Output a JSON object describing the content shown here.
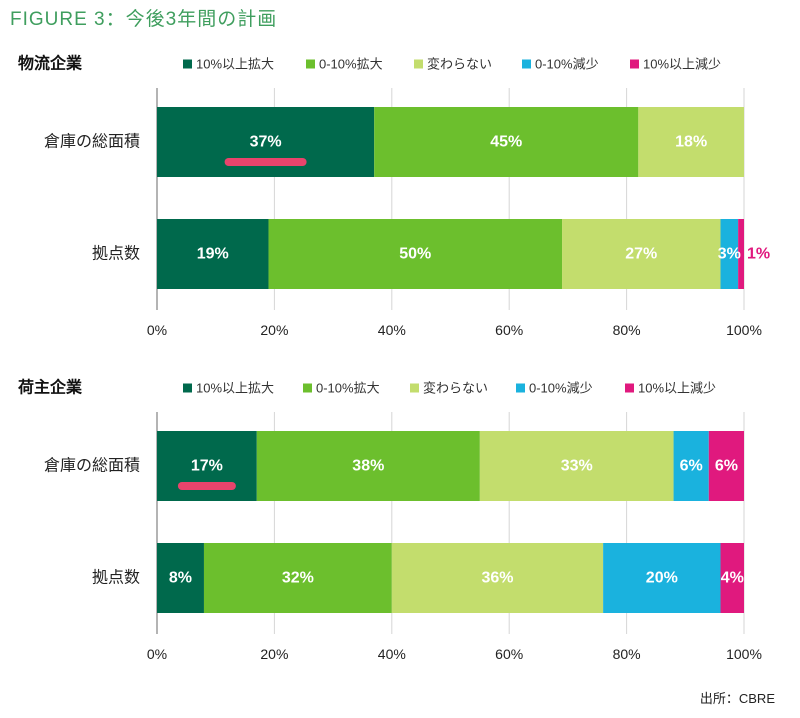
{
  "title": "FIGURE 3：今後3年間の計画",
  "source": "出所：CBRE",
  "colors": {
    "title": "#3f9e5e",
    "emphasis": "#e8446c",
    "grid": "#d6d6d6",
    "axis": "#6a6a6a"
  },
  "chart_data": [
    {
      "type": "bar",
      "orientation": "horizontal",
      "stacked": true,
      "title": "物流企業",
      "categories": [
        "倉庫の総面積",
        "拠点数"
      ],
      "series": [
        {
          "name": "10%以上拡大",
          "color": "#00694c",
          "values": [
            37,
            19
          ],
          "labels": [
            "37%",
            "19%"
          ]
        },
        {
          "name": "0-10%拡大",
          "color": "#6cbf2d",
          "values": [
            45,
            50
          ],
          "labels": [
            "45%",
            "50%"
          ]
        },
        {
          "name": "変わらない",
          "color": "#c3dd6d",
          "values": [
            18,
            27
          ],
          "labels": [
            "18%",
            "27%"
          ]
        },
        {
          "name": "0-10%減少",
          "color": "#1ab2de",
          "values": [
            0,
            3
          ],
          "labels": [
            null,
            "3%"
          ]
        },
        {
          "name": "10%以上減少",
          "color": "#e0197e",
          "values": [
            0,
            1
          ],
          "labels": [
            null,
            "1%"
          ]
        }
      ],
      "xlim": [
        0,
        100
      ],
      "xtick_values": [
        0,
        20,
        40,
        60,
        80,
        100
      ],
      "xtick_labels": [
        "0%",
        "20%",
        "40%",
        "60%",
        "80%",
        "100%"
      ],
      "grid": true,
      "legend": "top",
      "emphasis": {
        "category": "倉庫の総面積",
        "series": "10%以上拡大"
      }
    },
    {
      "type": "bar",
      "orientation": "horizontal",
      "stacked": true,
      "title": "荷主企業",
      "categories": [
        "倉庫の総面積",
        "拠点数"
      ],
      "series": [
        {
          "name": "10%以上拡大",
          "color": "#00694c",
          "values": [
            17,
            8
          ],
          "labels": [
            "17%",
            "8%"
          ]
        },
        {
          "name": "0-10%拡大",
          "color": "#6cbf2d",
          "values": [
            38,
            32
          ],
          "labels": [
            "38%",
            "32%"
          ]
        },
        {
          "name": "変わらない",
          "color": "#c3dd6d",
          "values": [
            33,
            36
          ],
          "labels": [
            "33%",
            "36%"
          ]
        },
        {
          "name": "0-10%減少",
          "color": "#1ab2de",
          "values": [
            6,
            20
          ],
          "labels": [
            "6%",
            "20%"
          ]
        },
        {
          "name": "10%以上減少",
          "color": "#e0197e",
          "values": [
            6,
            4
          ],
          "labels": [
            "6%",
            "4%"
          ]
        }
      ],
      "xlim": [
        0,
        100
      ],
      "xtick_values": [
        0,
        20,
        40,
        60,
        80,
        100
      ],
      "xtick_labels": [
        "0%",
        "20%",
        "40%",
        "60%",
        "80%",
        "100%"
      ],
      "grid": true,
      "legend": "top",
      "emphasis": {
        "category": "倉庫の総面積",
        "series": "10%以上拡大"
      }
    }
  ]
}
